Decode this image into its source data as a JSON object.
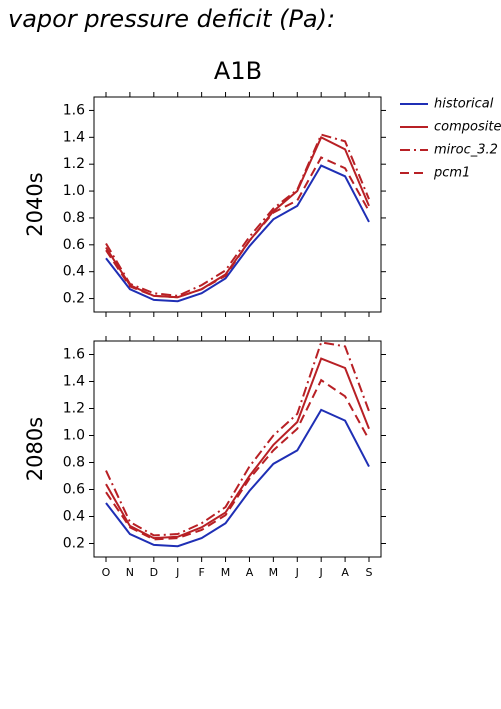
{
  "heading": "vapor pressure deficit (Pa):",
  "chart_data": [
    {
      "type": "line",
      "title": "A1B",
      "y_label": "2040s",
      "ylim": [
        0.1,
        1.7
      ],
      "yticks": [
        0.2,
        0.4,
        0.6,
        0.8,
        {
          "value": 1,
          "label": "1.0"
        },
        1.2,
        1.4,
        1.6
      ],
      "legend": "outside-right",
      "series": [
        {
          "name": "historical",
          "color": "#1f2fb5",
          "style": "solid",
          "values": [
            0.5,
            0.27,
            0.19,
            0.18,
            0.24,
            0.35,
            0.59,
            0.79,
            0.89,
            1.19,
            1.11,
            0.77
          ]
        },
        {
          "name": "composite",
          "color": "#b82025",
          "style": "solid",
          "values": [
            0.58,
            0.3,
            0.22,
            0.21,
            0.27,
            0.38,
            0.63,
            0.85,
            1.0,
            1.4,
            1.31,
            0.89
          ]
        },
        {
          "name": "miroc_3.2",
          "color": "#b82025",
          "style": "dashdot",
          "values": [
            0.61,
            0.31,
            0.24,
            0.22,
            0.3,
            0.41,
            0.66,
            0.87,
            1.01,
            1.42,
            1.37,
            0.94
          ]
        },
        {
          "name": "pcm1",
          "color": "#b82025",
          "style": "dash",
          "values": [
            0.56,
            0.29,
            0.22,
            0.21,
            0.27,
            0.37,
            0.63,
            0.84,
            0.93,
            1.25,
            1.17,
            0.85
          ]
        }
      ]
    },
    {
      "type": "line",
      "y_label": "2080s",
      "categories": [
        "O",
        "N",
        "D",
        "J",
        "F",
        "M",
        "A",
        "M",
        "J",
        "J",
        "A",
        "S"
      ],
      "ylim": [
        0.1,
        1.7
      ],
      "yticks": [
        0.2,
        0.4,
        0.6,
        0.8,
        {
          "value": 1,
          "label": "1.0"
        },
        1.2,
        1.4,
        1.6
      ],
      "series": [
        {
          "color": "#1f2fb5",
          "style": "solid",
          "values": [
            0.5,
            0.27,
            0.19,
            0.18,
            0.24,
            0.35,
            0.59,
            0.79,
            0.89,
            1.19,
            1.11,
            0.77
          ]
        },
        {
          "color": "#b82025",
          "style": "solid",
          "values": [
            0.64,
            0.33,
            0.24,
            0.25,
            0.32,
            0.43,
            0.7,
            0.93,
            1.1,
            1.57,
            1.5,
            1.05
          ]
        },
        {
          "color": "#b82025",
          "style": "dashdot",
          "values": [
            0.74,
            0.36,
            0.26,
            0.27,
            0.35,
            0.47,
            0.77,
            1.0,
            1.16,
            1.69,
            1.66,
            1.18
          ]
        },
        {
          "color": "#b82025",
          "style": "dash",
          "values": [
            0.58,
            0.32,
            0.23,
            0.24,
            0.3,
            0.41,
            0.68,
            0.89,
            1.05,
            1.41,
            1.29,
            0.97
          ]
        }
      ]
    }
  ]
}
